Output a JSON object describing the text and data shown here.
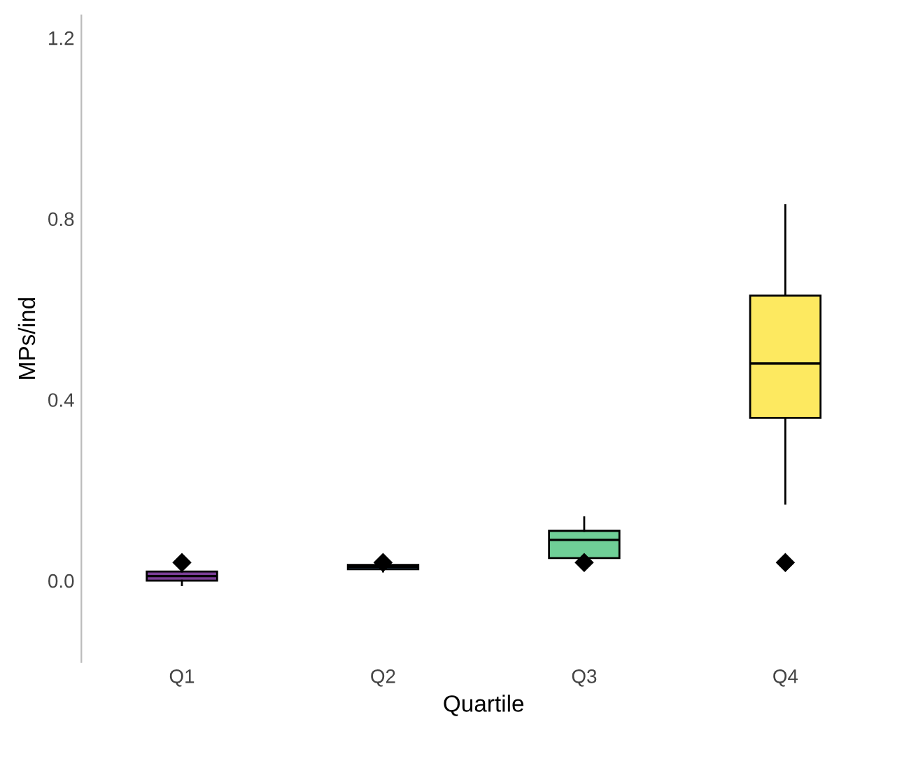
{
  "chart_data": {
    "type": "box",
    "xlabel": "Quartile",
    "ylabel": "MPs/ind",
    "categories": [
      "Q1",
      "Q2",
      "Q3",
      "Q4"
    ],
    "colors": [
      "#7b3f98",
      "#4a7ba7",
      "#6fcf97",
      "#fde960"
    ],
    "boxes": [
      {
        "low": -0.01,
        "q1": 0.0,
        "median": 0.01,
        "q3": 0.02,
        "high": 0.03,
        "mean": 0.04
      },
      {
        "low": 0.02,
        "q1": 0.025,
        "median": 0.03,
        "q3": 0.035,
        "high": 0.04,
        "mean": 0.04
      },
      {
        "low": 0.04,
        "q1": 0.05,
        "median": 0.09,
        "q3": 0.11,
        "high": 0.14,
        "mean": 0.04
      },
      {
        "low": 0.17,
        "q1": 0.36,
        "median": 0.48,
        "q3": 0.63,
        "high": 0.83,
        "mean": 0.04
      }
    ],
    "ylim": [
      -0.18,
      1.25
    ],
    "yticks": [
      {
        "value": 0,
        "label": "0.0"
      },
      0.4,
      0.8,
      1.2
    ],
    "grid": false
  }
}
